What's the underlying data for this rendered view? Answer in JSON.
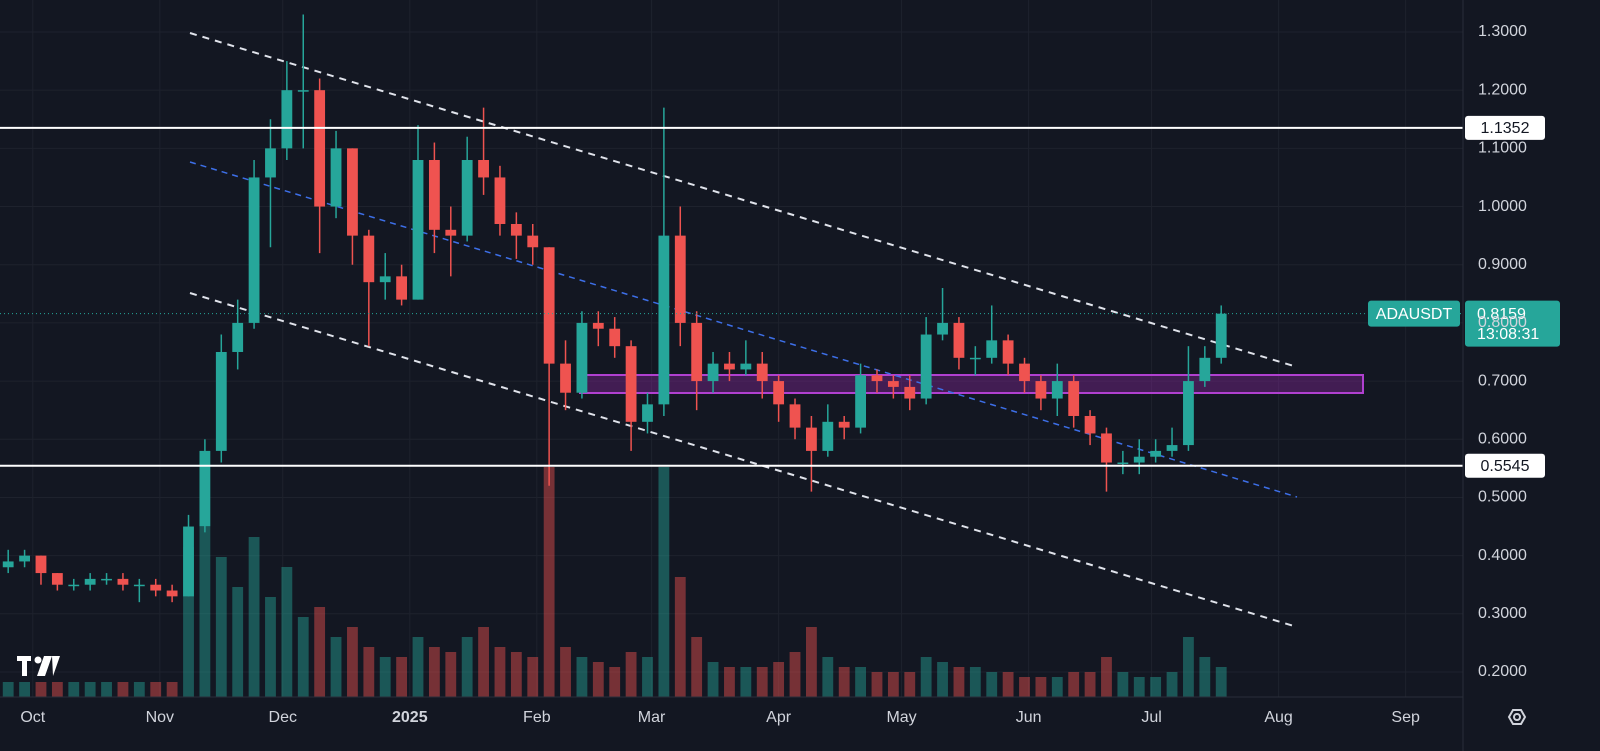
{
  "chart_data": {
    "type": "candlestick",
    "symbol": "ADAUSDT",
    "countdown": "13:08:31",
    "last_price": 0.8159,
    "price_lines": [
      1.1352,
      0.5545
    ],
    "up_color": "#26a69a",
    "down_color": "#ef5350",
    "grid": true,
    "xlim": [
      -0.5,
      88.75
    ],
    "xticks": [
      {
        "value": 1.5,
        "label": "Oct"
      },
      {
        "value": 9.25,
        "label": "Nov"
      },
      {
        "value": 16.75,
        "label": "Dec"
      },
      {
        "value": 24.5,
        "label": "2025"
      },
      {
        "value": 32.25,
        "label": "Feb"
      },
      {
        "value": 39.25,
        "label": "Mar"
      },
      {
        "value": 47,
        "label": "Apr"
      },
      {
        "value": 54.5,
        "label": "May"
      },
      {
        "value": 62.25,
        "label": "Jun"
      },
      {
        "value": 69.75,
        "label": "Jul"
      },
      {
        "value": 77.5,
        "label": "Aug"
      },
      {
        "value": 85.25,
        "label": "Sep"
      }
    ],
    "ylim": [
      0.157,
      1.355
    ],
    "yticks": [
      {
        "value": 0.2,
        "label": "0.2000"
      },
      {
        "value": 0.3,
        "label": "0.3000"
      },
      {
        "value": 0.4,
        "label": "0.4000"
      },
      {
        "value": 0.5,
        "label": "0.5000"
      },
      {
        "value": 0.6,
        "label": "0.6000"
      },
      {
        "value": 0.7,
        "label": "0.7000"
      },
      {
        "value": 0.8,
        "label": "0.8000"
      },
      {
        "value": 0.9,
        "label": "0.9000"
      },
      {
        "value": 1.0,
        "label": "1.0000"
      },
      {
        "value": 1.1,
        "label": "1.1000"
      },
      {
        "value": 1.2,
        "label": "1.2000"
      },
      {
        "value": 1.3,
        "label": "1.3000"
      }
    ],
    "categories": [
      null,
      null,
      null,
      null,
      null,
      null,
      null,
      null,
      null,
      null,
      null,
      null,
      null,
      null,
      null,
      null,
      null,
      null,
      null,
      null,
      null,
      null,
      null,
      null,
      null,
      null,
      null,
      null,
      null,
      null,
      null,
      null,
      null,
      null,
      null,
      null,
      null,
      null,
      null,
      null,
      null,
      null,
      null,
      null,
      null,
      null,
      null,
      null,
      null,
      null,
      null,
      null,
      null,
      null,
      null,
      null,
      null,
      null,
      null,
      null,
      null,
      null,
      null,
      null,
      null,
      null,
      null,
      null,
      null,
      null,
      null,
      null,
      null,
      null,
      null
    ],
    "open": [
      0.38,
      0.39,
      0.4,
      0.37,
      0.35,
      0.35,
      0.36,
      0.36,
      0.35,
      0.35,
      0.34,
      0.33,
      0.45,
      0.58,
      0.75,
      0.8,
      1.05,
      1.1,
      1.2,
      1.2,
      1.0,
      1.1,
      0.95,
      0.87,
      0.88,
      0.84,
      1.08,
      0.96,
      0.95,
      1.08,
      1.05,
      0.97,
      0.95,
      0.93,
      0.73,
      0.68,
      0.8,
      0.79,
      0.76,
      0.63,
      0.66,
      0.95,
      0.8,
      0.7,
      0.73,
      0.72,
      0.73,
      0.7,
      0.66,
      0.62,
      0.58,
      0.63,
      0.62,
      0.71,
      0.7,
      0.69,
      0.67,
      0.78,
      0.8,
      0.74,
      0.74,
      0.77,
      0.73,
      0.7,
      0.67,
      0.7,
      0.64,
      0.61,
      0.56,
      0.56,
      0.57,
      0.58,
      0.59,
      0.7,
      0.74
    ],
    "high": [
      0.41,
      0.41,
      0.4,
      0.37,
      0.36,
      0.37,
      0.37,
      0.37,
      0.36,
      0.36,
      0.35,
      0.47,
      0.6,
      0.78,
      0.84,
      1.08,
      1.15,
      1.25,
      1.33,
      1.22,
      1.13,
      1.1,
      0.96,
      0.92,
      0.9,
      1.14,
      1.11,
      1.0,
      1.12,
      1.17,
      1.07,
      0.99,
      0.97,
      0.93,
      0.77,
      0.82,
      0.82,
      0.81,
      0.77,
      0.68,
      1.17,
      1.0,
      0.82,
      0.75,
      0.75,
      0.77,
      0.75,
      0.71,
      0.67,
      0.64,
      0.66,
      0.64,
      0.73,
      0.72,
      0.71,
      0.71,
      0.81,
      0.86,
      0.81,
      0.76,
      0.83,
      0.78,
      0.74,
      0.71,
      0.73,
      0.71,
      0.65,
      0.62,
      0.58,
      0.6,
      0.6,
      0.62,
      0.76,
      0.76,
      0.83
    ],
    "low": [
      0.37,
      0.38,
      0.35,
      0.34,
      0.34,
      0.34,
      0.35,
      0.34,
      0.32,
      0.33,
      0.32,
      0.33,
      0.44,
      0.56,
      0.72,
      0.79,
      0.93,
      1.08,
      1.1,
      0.92,
      0.98,
      0.9,
      0.76,
      0.84,
      0.83,
      0.84,
      0.92,
      0.88,
      0.94,
      1.02,
      0.95,
      0.91,
      0.9,
      0.52,
      0.65,
      0.67,
      0.76,
      0.74,
      0.58,
      0.61,
      0.64,
      0.76,
      0.65,
      0.68,
      0.7,
      0.71,
      0.67,
      0.63,
      0.6,
      0.51,
      0.57,
      0.6,
      0.61,
      0.68,
      0.67,
      0.65,
      0.66,
      0.77,
      0.72,
      0.71,
      0.73,
      0.71,
      0.68,
      0.65,
      0.64,
      0.62,
      0.59,
      0.51,
      0.54,
      0.54,
      0.56,
      0.57,
      0.58,
      0.69,
      0.73
    ],
    "close": [
      0.39,
      0.4,
      0.37,
      0.35,
      0.35,
      0.36,
      0.36,
      0.35,
      0.35,
      0.34,
      0.33,
      0.45,
      0.58,
      0.75,
      0.8,
      1.05,
      1.1,
      1.2,
      1.2,
      1.0,
      1.1,
      0.95,
      0.87,
      0.88,
      0.84,
      1.08,
      0.96,
      0.95,
      1.08,
      1.05,
      0.97,
      0.95,
      0.93,
      0.73,
      0.68,
      0.8,
      0.79,
      0.76,
      0.63,
      0.66,
      0.95,
      0.8,
      0.7,
      0.73,
      0.72,
      0.73,
      0.7,
      0.66,
      0.62,
      0.58,
      0.63,
      0.62,
      0.71,
      0.7,
      0.69,
      0.67,
      0.78,
      0.8,
      0.74,
      0.74,
      0.77,
      0.73,
      0.7,
      0.67,
      0.7,
      0.64,
      0.61,
      0.56,
      0.56,
      0.57,
      0.58,
      0.59,
      0.7,
      0.74,
      0.8159
    ],
    "volume": [
      15,
      15,
      15,
      15,
      15,
      15,
      15,
      15,
      15,
      15,
      15,
      150,
      170,
      140,
      110,
      160,
      100,
      130,
      80,
      90,
      60,
      70,
      50,
      40,
      40,
      60,
      50,
      45,
      60,
      70,
      50,
      45,
      40,
      230,
      50,
      40,
      35,
      30,
      45,
      40,
      230,
      120,
      60,
      35,
      30,
      30,
      30,
      35,
      45,
      70,
      40,
      30,
      30,
      25,
      25,
      25,
      40,
      35,
      30,
      30,
      25,
      25,
      20,
      20,
      20,
      25,
      25,
      40,
      25,
      20,
      20,
      25,
      60,
      40,
      30
    ]
  }
}
